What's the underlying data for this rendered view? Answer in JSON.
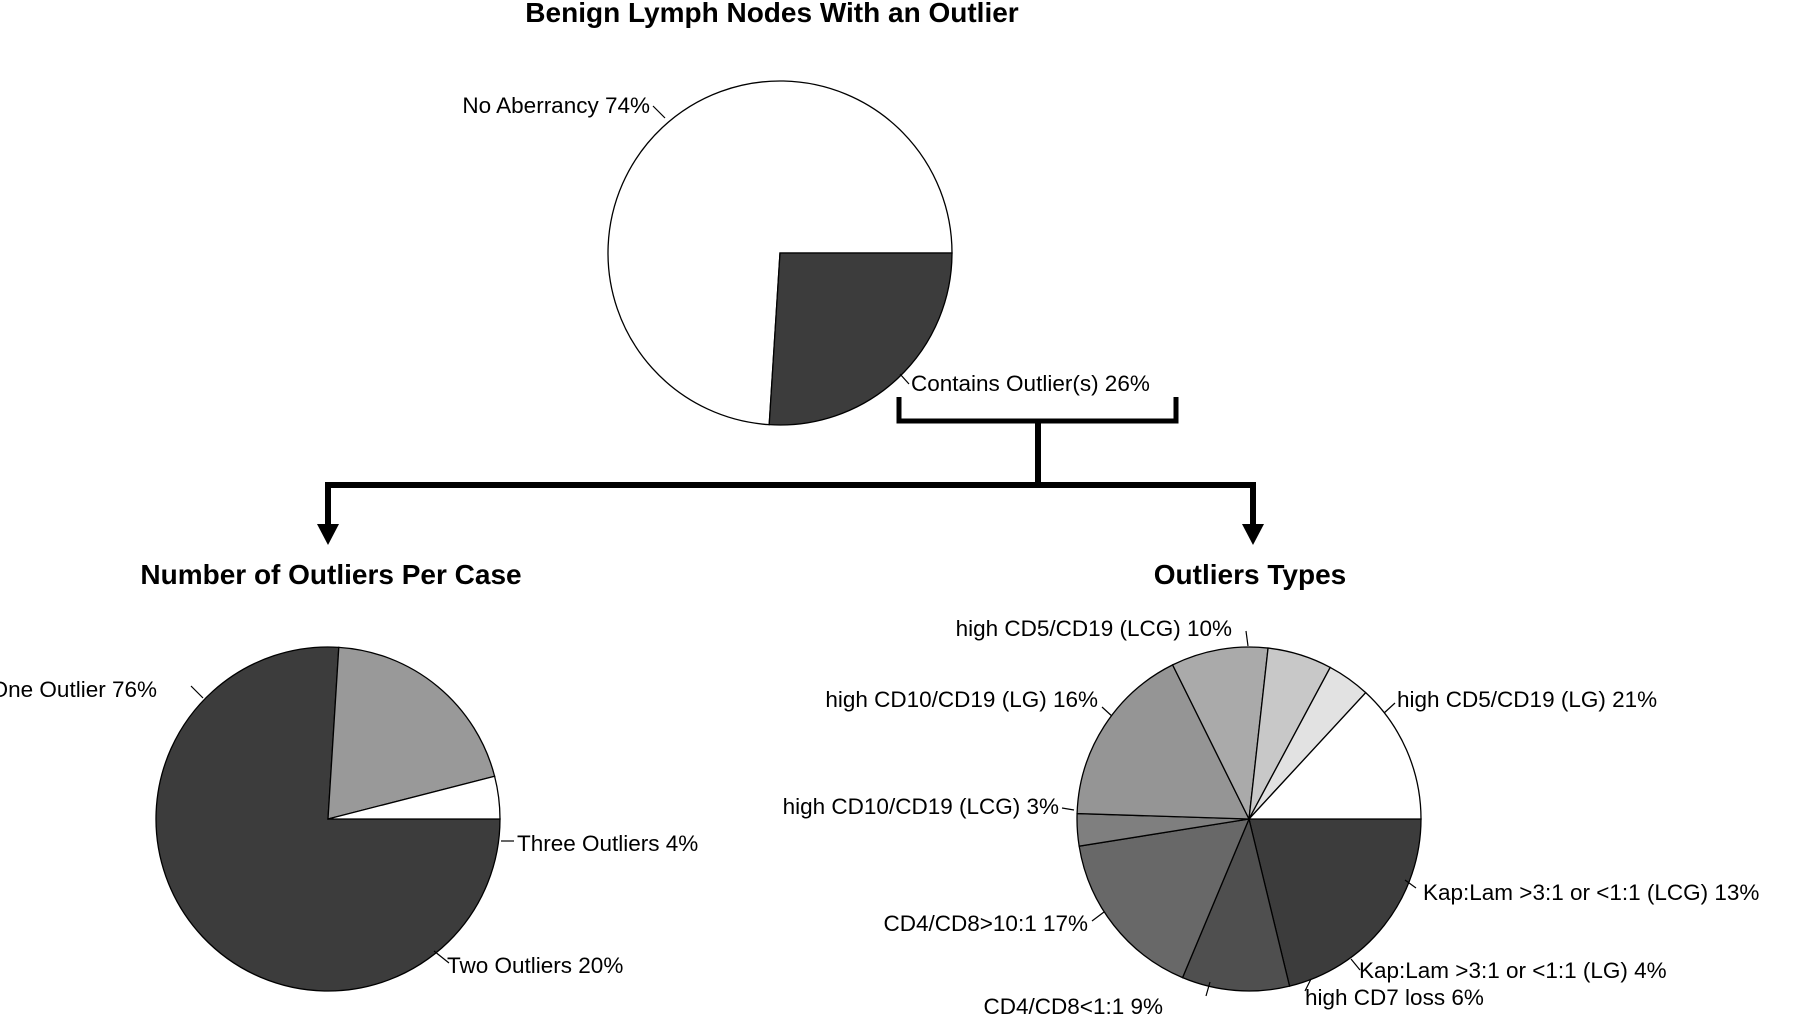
{
  "chart_data": [
    {
      "type": "pie",
      "title": "Benign Lymph Nodes With an Outlier",
      "slices": [
        {
          "label": "No Aberrancy",
          "pct_text": "74%",
          "value": 74,
          "color": "#ffffff"
        },
        {
          "label": "Contains Outlier(s)",
          "pct_text": "26%",
          "value": 26,
          "color": "#3c3c3c"
        }
      ]
    },
    {
      "type": "pie",
      "title": "Number of Outliers Per Case",
      "slices": [
        {
          "label": "One Outlier",
          "pct_text": "76%",
          "value": 76,
          "color": "#3c3c3c"
        },
        {
          "label": "Two Outliers",
          "pct_text": "20%",
          "value": 20,
          "color": "#999999"
        },
        {
          "label": "Three Outliers",
          "pct_text": "4%",
          "value": 4,
          "color": "#ffffff"
        }
      ]
    },
    {
      "type": "pie",
      "title": "Outliers Types",
      "slices": [
        {
          "label": "high CD5/CD19 (LG)",
          "pct_text": "21%",
          "value": 21,
          "color": "#3c3c3c"
        },
        {
          "label": "high CD5/CD19 (LCG)",
          "pct_text": "10%",
          "value": 10,
          "color": "#4f4f4f"
        },
        {
          "label": "high CD10/CD19 (LG)",
          "pct_text": "16%",
          "value": 16,
          "color": "#686868"
        },
        {
          "label": "high CD10/CD19 (LCG)",
          "pct_text": "3%",
          "value": 3,
          "color": "#7f7f7f"
        },
        {
          "label": "CD4/CD8>10:1",
          "pct_text": "17%",
          "value": 17,
          "color": "#959595"
        },
        {
          "label": "CD4/CD8<1:1",
          "pct_text": "9%",
          "value": 9,
          "color": "#aaaaaa"
        },
        {
          "label": "high CD7 loss",
          "pct_text": "6%",
          "value": 6,
          "color": "#c8c8c8"
        },
        {
          "label": "Kap:Lam >3:1 or <1:1 (LG)",
          "pct_text": "4%",
          "value": 4,
          "color": "#e2e2e2"
        },
        {
          "label": "Kap:Lam >3:1 or <1:1 (LCG)",
          "pct_text": "13%",
          "value": 13,
          "color": "#ffffff"
        }
      ]
    }
  ]
}
